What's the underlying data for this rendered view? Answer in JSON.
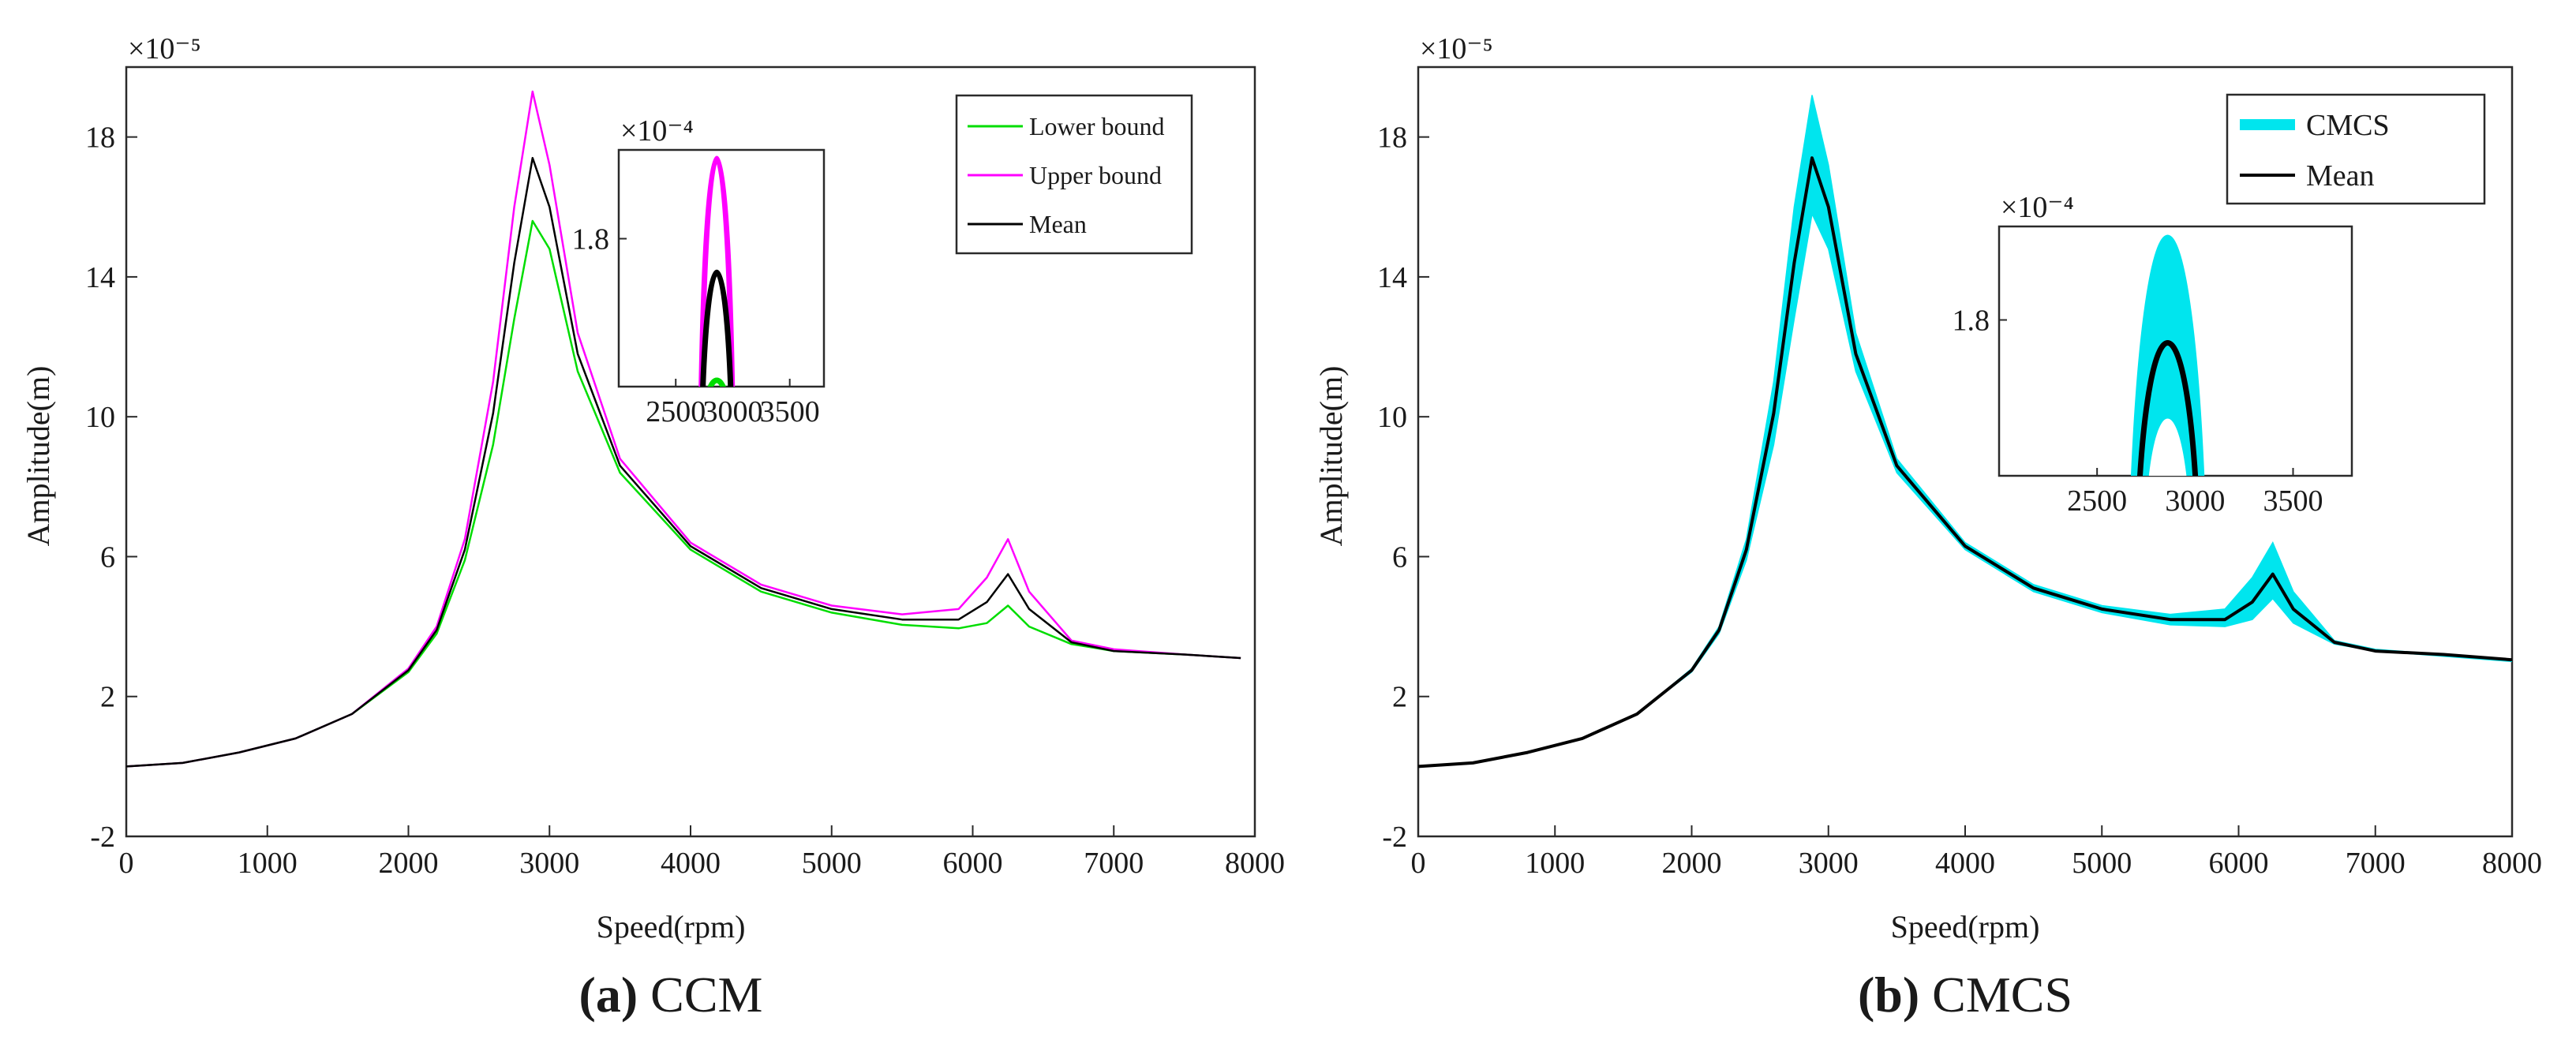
{
  "chart_data": [
    {
      "type": "line",
      "panel": "a",
      "exponent_label": "×10⁻⁵",
      "xlabel": "Speed(rpm)",
      "ylabel": "Amplitude(m)",
      "xlim": [
        0,
        8000
      ],
      "ylim": [
        -2,
        20
      ],
      "xticks": [
        0,
        1000,
        2000,
        3000,
        4000,
        5000,
        6000,
        7000,
        8000
      ],
      "xtick_labels": [
        "0",
        "1000",
        "2000",
        "3000",
        "4000",
        "5000",
        "6000",
        "7000",
        "8000"
      ],
      "yticks": [
        -2,
        2,
        6,
        10,
        14,
        18
      ],
      "ytick_labels": [
        "-2",
        "2",
        "6",
        "10",
        "14",
        "18"
      ],
      "legend_location": "top-right",
      "series": [
        {
          "name": "Lower bound",
          "color": "#00dd00",
          "x": [
            0,
            400,
            800,
            1200,
            1600,
            2000,
            2200,
            2400,
            2600,
            2750,
            2880,
            3000,
            3200,
            3500,
            4000,
            4500,
            5000,
            5500,
            5900,
            6100,
            6250,
            6400,
            6700,
            7000,
            7500,
            7900
          ],
          "y": [
            0.0,
            0.1,
            0.4,
            0.8,
            1.5,
            2.7,
            3.8,
            5.9,
            9.2,
            12.8,
            15.6,
            14.8,
            11.3,
            8.4,
            6.2,
            5.0,
            4.4,
            4.05,
            3.95,
            4.1,
            4.6,
            4.0,
            3.5,
            3.3,
            3.2,
            3.1
          ]
        },
        {
          "name": "Upper bound",
          "color": "#ff00ff",
          "x": [
            0,
            400,
            800,
            1200,
            1600,
            2000,
            2200,
            2400,
            2600,
            2750,
            2880,
            3000,
            3200,
            3500,
            4000,
            4500,
            5000,
            5500,
            5900,
            6100,
            6250,
            6400,
            6700,
            7000,
            7500,
            7900
          ],
          "y": [
            0.0,
            0.1,
            0.4,
            0.8,
            1.5,
            2.8,
            4.0,
            6.5,
            11.0,
            16.0,
            19.3,
            17.2,
            12.4,
            8.8,
            6.4,
            5.2,
            4.6,
            4.35,
            4.5,
            5.4,
            6.5,
            5.0,
            3.6,
            3.35,
            3.2,
            3.1
          ]
        },
        {
          "name": "Mean",
          "color": "#000000",
          "x": [
            0,
            400,
            800,
            1200,
            1600,
            2000,
            2200,
            2400,
            2600,
            2750,
            2880,
            3000,
            3200,
            3500,
            4000,
            4500,
            5000,
            5500,
            5900,
            6100,
            6250,
            6400,
            6700,
            7000,
            7500,
            7900
          ],
          "y": [
            0.0,
            0.1,
            0.4,
            0.8,
            1.5,
            2.75,
            3.9,
            6.2,
            10.1,
            14.4,
            17.4,
            16.0,
            11.8,
            8.6,
            6.3,
            5.1,
            4.5,
            4.2,
            4.2,
            4.7,
            5.5,
            4.5,
            3.55,
            3.3,
            3.2,
            3.1
          ]
        }
      ],
      "inset": {
        "exponent_label": "×10⁻⁴",
        "xlim": [
          2000,
          3800
        ],
        "ylim": [
          1.55,
          1.95
        ],
        "xticks": [
          2500,
          3000,
          3500
        ],
        "xtick_labels": [
          "2500",
          "3000",
          "3500"
        ],
        "yticks": [
          1.8
        ],
        "ytick_labels": [
          "1.8"
        ],
        "peaks": [
          {
            "name": "Upper bound",
            "color": "#ff00ff",
            "peak_x": 2860,
            "peak_y": 1.93
          },
          {
            "name": "Mean",
            "color": "#000000",
            "peak_x": 2860,
            "peak_y": 1.74
          },
          {
            "name": "Lower bound",
            "color": "#00dd00",
            "peak_x": 2860,
            "peak_y": 1.56
          }
        ]
      }
    },
    {
      "type": "area",
      "panel": "b",
      "exponent_label": "×10⁻⁵",
      "xlabel": "Speed(rpm)",
      "ylabel": "Amplitude(m)",
      "xlim": [
        0,
        8000
      ],
      "ylim": [
        -2,
        20
      ],
      "xticks": [
        0,
        1000,
        2000,
        3000,
        4000,
        5000,
        6000,
        7000,
        8000
      ],
      "xtick_labels": [
        "0",
        "1000",
        "2000",
        "3000",
        "4000",
        "5000",
        "6000",
        "7000",
        "8000"
      ],
      "yticks": [
        -2,
        2,
        6,
        10,
        14,
        18
      ],
      "ytick_labels": [
        "-2",
        "2",
        "6",
        "10",
        "14",
        "18"
      ],
      "legend_location": "top-right",
      "x": [
        0,
        400,
        800,
        1200,
        1600,
        2000,
        2200,
        2400,
        2600,
        2750,
        2880,
        3000,
        3200,
        3500,
        4000,
        4500,
        5000,
        5500,
        5900,
        6100,
        6250,
        6400,
        6700,
        7000,
        7500,
        8000
      ],
      "series": [
        {
          "name": "CMCS",
          "color": "#00e5ee",
          "kind": "band",
          "lower": [
            0.0,
            0.1,
            0.4,
            0.8,
            1.5,
            2.7,
            3.8,
            5.9,
            9.2,
            12.8,
            15.8,
            14.8,
            11.3,
            8.4,
            6.2,
            5.0,
            4.4,
            4.05,
            4.0,
            4.2,
            4.8,
            4.1,
            3.5,
            3.3,
            3.15,
            3.0
          ],
          "upper": [
            0.0,
            0.1,
            0.4,
            0.8,
            1.5,
            2.8,
            4.0,
            6.5,
            11.0,
            16.0,
            19.2,
            17.2,
            12.4,
            8.8,
            6.4,
            5.2,
            4.6,
            4.35,
            4.5,
            5.4,
            6.4,
            5.0,
            3.6,
            3.35,
            3.2,
            3.05
          ]
        },
        {
          "name": "Mean",
          "color": "#000000",
          "kind": "line",
          "values": [
            0.0,
            0.1,
            0.4,
            0.8,
            1.5,
            2.75,
            3.9,
            6.2,
            10.1,
            14.4,
            17.4,
            16.0,
            11.8,
            8.6,
            6.3,
            5.1,
            4.5,
            4.2,
            4.2,
            4.7,
            5.5,
            4.5,
            3.55,
            3.3,
            3.2,
            3.05
          ]
        }
      ],
      "inset": {
        "exponent_label": "×10⁻⁴",
        "xlim": [
          2000,
          3800
        ],
        "ylim": [
          1.55,
          1.95
        ],
        "xticks": [
          2500,
          3000,
          3500
        ],
        "xtick_labels": [
          "2500",
          "3000",
          "3500"
        ],
        "yticks": [
          1.8
        ],
        "ytick_labels": [
          "1.8"
        ],
        "band": {
          "name": "CMCS",
          "color": "#00e5ee",
          "peak_x": 2860,
          "upper_peak": 1.93,
          "lower_peak": 1.64
        },
        "peaks": [
          {
            "name": "Mean",
            "color": "#000000",
            "peak_x": 2860,
            "peak_y": 1.76
          },
          {
            "name": "Lower",
            "color": "#ffffff",
            "peak_x": 2860,
            "peak_y": 1.64
          }
        ]
      }
    }
  ],
  "captions": [
    {
      "letter": "(a)",
      "text": " CCM"
    },
    {
      "letter": "(b)",
      "text": " CMCS"
    }
  ]
}
